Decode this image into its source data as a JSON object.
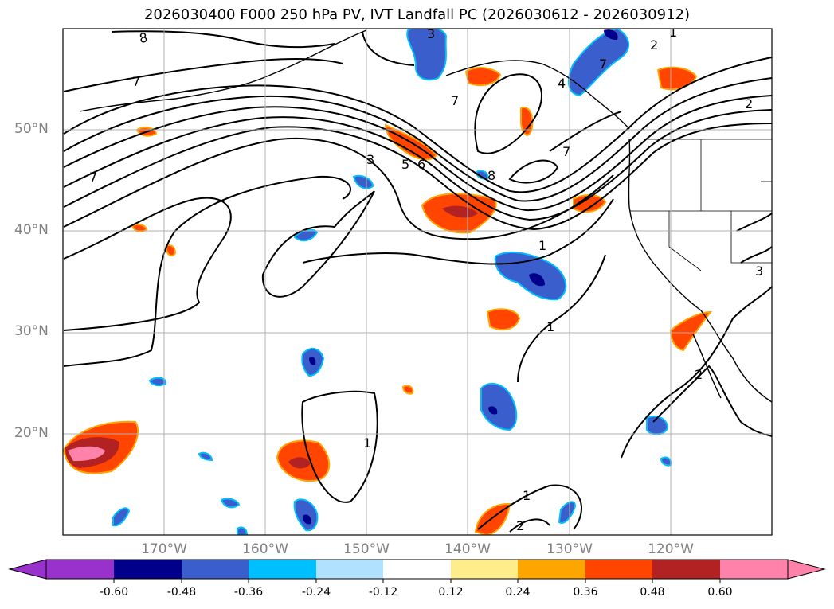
{
  "title": "2026030400 F000 250 hPa PV, IVT Landfall PC (2026030612 - 2026030912)",
  "map": {
    "projection": "PlateCarree",
    "lon_range": [
      -180,
      -110
    ],
    "lat_range": [
      10,
      60
    ],
    "gridlines": true,
    "lat_labels": [
      "50°N",
      "40°N",
      "30°N",
      "20°N"
    ],
    "lon_labels": [
      "170°W",
      "160°W",
      "150°W",
      "140°W",
      "130°W",
      "120°W"
    ],
    "contour_field": "250 hPa PV",
    "contour_labels": [
      "8",
      "7",
      "3",
      "2",
      "1",
      "7",
      "7",
      "2",
      "7",
      "3",
      "5",
      "6",
      "8",
      "7",
      "4",
      "1",
      "1",
      "3",
      "2",
      "1",
      "1",
      "2"
    ],
    "shaded_field": "IVT Landfall PC"
  },
  "colorbar": {
    "extend": "both",
    "levels": [
      "-0.60",
      "-0.48",
      "-0.36",
      "-0.24",
      "-0.12",
      "0.12",
      "0.24",
      "0.36",
      "0.48",
      "0.60"
    ],
    "colors": [
      "#9932cc",
      "#00008b",
      "#3a5fcd",
      "#00bfff",
      "#b0e2ff",
      "#ffffff",
      "#ffec8b",
      "#ffa500",
      "#ff4500",
      "#b22222",
      "#ff82ab"
    ]
  }
}
